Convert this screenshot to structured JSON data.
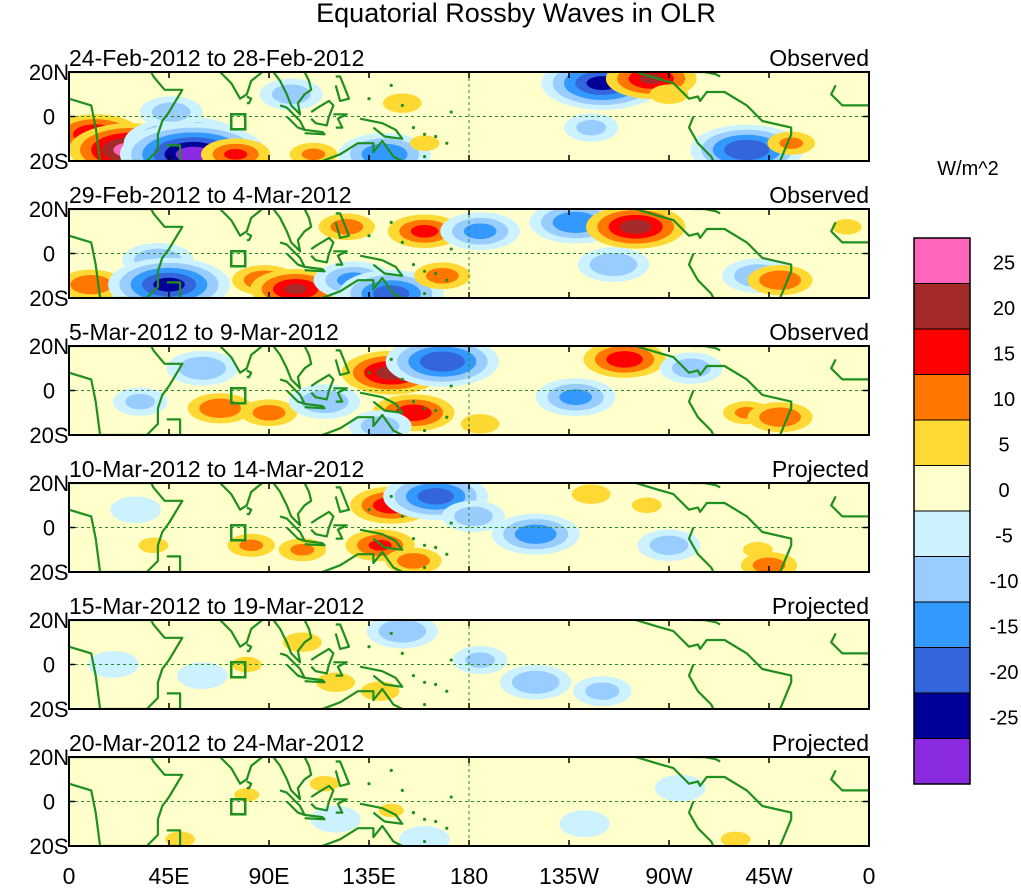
{
  "chart_data": {
    "type": "heatmap",
    "title": "Equatorial Rossby Waves in OLR",
    "units": "W/m^2",
    "x_ticks": [
      "0",
      "45E",
      "90E",
      "135E",
      "180",
      "135W",
      "90W",
      "45W",
      "0"
    ],
    "y_ticks": [
      "20N",
      "0",
      "20S"
    ],
    "longitude_range": [
      0,
      360
    ],
    "latitude_range": [
      -20,
      20
    ],
    "colorbar": {
      "labels": [
        "25",
        "20",
        "15",
        "10",
        "5",
        "0",
        "-5",
        "-10",
        "-15",
        "-20",
        "-25"
      ],
      "colors": [
        "#ff66bb",
        "#a52a2a",
        "#ff0000",
        "#ff7700",
        "#ffd933",
        "#ffffcc",
        "#ccf2ff",
        "#99ccff",
        "#3399ff",
        "#3366dd",
        "#000099",
        "#8a2be2"
      ]
    },
    "panels": [
      {
        "period": "24-Feb-2012 to 28-Feb-2012",
        "status": "Observed",
        "anomalies": [
          {
            "lon": 12,
            "lat": -8,
            "value": 20
          },
          {
            "lon": 28,
            "lat": -15,
            "value": 28
          },
          {
            "lon": 52,
            "lat": -12,
            "value": -22
          },
          {
            "lon": 56,
            "lat": -17,
            "value": -28
          },
          {
            "lon": 46,
            "lat": 2,
            "value": -8
          },
          {
            "lon": 100,
            "lat": 10,
            "value": -8
          },
          {
            "lon": 75,
            "lat": -17,
            "value": 15
          },
          {
            "lon": 110,
            "lat": -17,
            "value": 10
          },
          {
            "lon": 142,
            "lat": -17,
            "value": -15
          },
          {
            "lon": 150,
            "lat": 6,
            "value": 8
          },
          {
            "lon": 160,
            "lat": -12,
            "value": 6
          },
          {
            "lon": 240,
            "lat": 15,
            "value": -22
          },
          {
            "lon": 262,
            "lat": 17,
            "value": 20
          },
          {
            "lon": 270,
            "lat": 10,
            "value": 8
          },
          {
            "lon": 305,
            "lat": -15,
            "value": -20
          },
          {
            "lon": 325,
            "lat": -12,
            "value": 10
          },
          {
            "lon": 205,
            "lat": 0,
            "value": 4
          },
          {
            "lon": 235,
            "lat": -5,
            "value": -6
          }
        ]
      },
      {
        "period": "29-Feb-2012 to 4-Mar-2012",
        "status": "Observed",
        "anomalies": [
          {
            "lon": 10,
            "lat": -14,
            "value": 14
          },
          {
            "lon": 40,
            "lat": -3,
            "value": -10
          },
          {
            "lon": 45,
            "lat": -14,
            "value": -22
          },
          {
            "lon": 88,
            "lat": -12,
            "value": 14
          },
          {
            "lon": 102,
            "lat": -16,
            "value": 20
          },
          {
            "lon": 125,
            "lat": 12,
            "value": 12
          },
          {
            "lon": 128,
            "lat": -12,
            "value": -12
          },
          {
            "lon": 145,
            "lat": -18,
            "value": -18
          },
          {
            "lon": 160,
            "lat": 10,
            "value": 16
          },
          {
            "lon": 168,
            "lat": -10,
            "value": 12
          },
          {
            "lon": 185,
            "lat": 10,
            "value": -12
          },
          {
            "lon": 228,
            "lat": 14,
            "value": -15
          },
          {
            "lon": 255,
            "lat": 12,
            "value": 22
          },
          {
            "lon": 245,
            "lat": -5,
            "value": -10
          },
          {
            "lon": 310,
            "lat": -10,
            "value": -10
          },
          {
            "lon": 320,
            "lat": -12,
            "value": 14
          },
          {
            "lon": 350,
            "lat": 12,
            "value": 6
          }
        ]
      },
      {
        "period": "5-Mar-2012 to 9-Mar-2012",
        "status": "Observed",
        "anomalies": [
          {
            "lon": 32,
            "lat": -5,
            "value": -6
          },
          {
            "lon": 60,
            "lat": 10,
            "value": -10
          },
          {
            "lon": 68,
            "lat": -8,
            "value": 14
          },
          {
            "lon": 90,
            "lat": -10,
            "value": 12
          },
          {
            "lon": 115,
            "lat": -5,
            "value": -10
          },
          {
            "lon": 145,
            "lat": 8,
            "value": 22
          },
          {
            "lon": 168,
            "lat": 13,
            "value": -20
          },
          {
            "lon": 155,
            "lat": -10,
            "value": 18
          },
          {
            "lon": 140,
            "lat": -16,
            "value": -8
          },
          {
            "lon": 185,
            "lat": -15,
            "value": 8
          },
          {
            "lon": 228,
            "lat": -3,
            "value": -12
          },
          {
            "lon": 250,
            "lat": 14,
            "value": 18
          },
          {
            "lon": 280,
            "lat": 10,
            "value": -8
          },
          {
            "lon": 305,
            "lat": -10,
            "value": 10
          },
          {
            "lon": 320,
            "lat": -12,
            "value": 14
          }
        ]
      },
      {
        "period": "10-Mar-2012 to 14-Mar-2012",
        "status": "Projected",
        "anomalies": [
          {
            "lon": 30,
            "lat": 8,
            "value": -5
          },
          {
            "lon": 38,
            "lat": -8,
            "value": 6
          },
          {
            "lon": 82,
            "lat": -8,
            "value": 10
          },
          {
            "lon": 105,
            "lat": -10,
            "value": 10
          },
          {
            "lon": 145,
            "lat": 10,
            "value": 18
          },
          {
            "lon": 165,
            "lat": 14,
            "value": -18
          },
          {
            "lon": 140,
            "lat": -8,
            "value": 15
          },
          {
            "lon": 155,
            "lat": -15,
            "value": 12
          },
          {
            "lon": 182,
            "lat": 5,
            "value": -8
          },
          {
            "lon": 210,
            "lat": -3,
            "value": -14
          },
          {
            "lon": 235,
            "lat": 15,
            "value": 8
          },
          {
            "lon": 260,
            "lat": 10,
            "value": 6
          },
          {
            "lon": 270,
            "lat": -8,
            "value": -8
          },
          {
            "lon": 310,
            "lat": -10,
            "value": 6
          },
          {
            "lon": 315,
            "lat": -17,
            "value": 12
          }
        ]
      },
      {
        "period": "15-Mar-2012 to 19-Mar-2012",
        "status": "Projected",
        "anomalies": [
          {
            "lon": 20,
            "lat": 0,
            "value": -5
          },
          {
            "lon": 60,
            "lat": -5,
            "value": -5
          },
          {
            "lon": 80,
            "lat": 0,
            "value": 6
          },
          {
            "lon": 105,
            "lat": 10,
            "value": 8
          },
          {
            "lon": 120,
            "lat": -8,
            "value": 8
          },
          {
            "lon": 150,
            "lat": 15,
            "value": -10
          },
          {
            "lon": 140,
            "lat": -12,
            "value": 8
          },
          {
            "lon": 185,
            "lat": 2,
            "value": -6
          },
          {
            "lon": 210,
            "lat": -8,
            "value": -10
          },
          {
            "lon": 240,
            "lat": -12,
            "value": -7
          },
          {
            "lon": 230,
            "lat": 10,
            "value": 4
          },
          {
            "lon": 290,
            "lat": 5,
            "value": 4
          }
        ]
      },
      {
        "period": "20-Mar-2012 to 24-Mar-2012",
        "status": "Projected",
        "anomalies": [
          {
            "lon": 50,
            "lat": -17,
            "value": 6
          },
          {
            "lon": 80,
            "lat": 3,
            "value": 5
          },
          {
            "lon": 115,
            "lat": 8,
            "value": 6
          },
          {
            "lon": 145,
            "lat": -4,
            "value": 5
          },
          {
            "lon": 120,
            "lat": -8,
            "value": -5
          },
          {
            "lon": 160,
            "lat": -17,
            "value": -5
          },
          {
            "lon": 205,
            "lat": 10,
            "value": 4
          },
          {
            "lon": 232,
            "lat": -10,
            "value": -5
          },
          {
            "lon": 275,
            "lat": 6,
            "value": -5
          },
          {
            "lon": 300,
            "lat": -17,
            "value": 6
          }
        ]
      }
    ]
  }
}
